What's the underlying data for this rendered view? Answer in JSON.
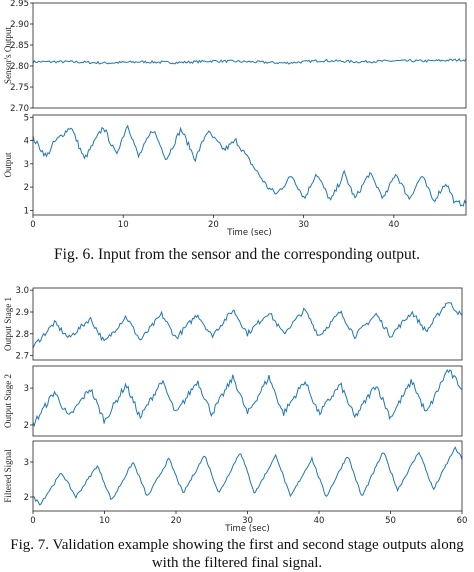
{
  "captions": {
    "fig6": "Fig. 6. Input from the sensor and the corresponding output.",
    "fig7_line1": "Fig. 7. Validation example showing the first and second stage outputs along",
    "fig7_line2": "with the filtered final signal."
  },
  "colors": {
    "line": "#1f77b4",
    "frame": "#222222"
  },
  "chart_data": [
    {
      "type": "line",
      "figure": "Fig. 6",
      "ylabel": "Sensor's Output",
      "xlabel": "",
      "xlim": [
        0,
        48
      ],
      "ylim": [
        2.7,
        2.95
      ],
      "yticks": [
        2.7,
        2.75,
        2.8,
        2.85,
        2.9,
        2.95
      ],
      "ytick_labels": [
        "2.70",
        "2.75",
        "2.80",
        "2.85",
        "2.90",
        "2.95"
      ],
      "xticks": [],
      "x": [
        0,
        4,
        8,
        12,
        16,
        20,
        24,
        28,
        32,
        36,
        40,
        44,
        48
      ],
      "y": [
        2.81,
        2.81,
        2.807,
        2.81,
        2.808,
        2.812,
        2.81,
        2.807,
        2.813,
        2.81,
        2.812,
        2.812,
        2.815
      ],
      "noise": 0.003
    },
    {
      "type": "line",
      "figure": "Fig. 6",
      "ylabel": "Output",
      "xlabel": "Time (sec)",
      "xlim": [
        0,
        48
      ],
      "ylim": [
        0.8,
        5.1
      ],
      "yticks": [
        1,
        2,
        3,
        4,
        5
      ],
      "ytick_labels": [
        "1",
        "2",
        "3",
        "4",
        "5"
      ],
      "xticks": [
        0,
        10,
        20,
        30,
        40
      ],
      "x": [
        0,
        1.5,
        2.3,
        4.2,
        5.7,
        7.8,
        9.2,
        10.5,
        11.7,
        13.3,
        14.8,
        16.4,
        18,
        19.3,
        21.2,
        22.5,
        24.4,
        26,
        27,
        28.7,
        30.1,
        31.4,
        33,
        34.5,
        35.7,
        37.3,
        38.9,
        40.2,
        41.7,
        43.1,
        44.4,
        45.8,
        46.8,
        47.7
      ],
      "y": [
        4.1,
        3.3,
        3.9,
        4.6,
        3.2,
        4.6,
        3.4,
        4.7,
        3.3,
        4.5,
        3.2,
        4.5,
        3.2,
        4.4,
        3.6,
        4.0,
        2.9,
        2.0,
        1.7,
        2.5,
        1.5,
        2.6,
        1.4,
        2.6,
        1.5,
        2.6,
        1.5,
        2.6,
        1.5,
        2.5,
        1.4,
        2.2,
        1.3,
        1.3
      ],
      "noise": 0.12
    },
    {
      "type": "line",
      "figure": "Fig. 7",
      "ylabel": "Output Stage 1",
      "xlabel": "",
      "xlim": [
        0,
        60
      ],
      "ylim": [
        2.68,
        3.01
      ],
      "yticks": [
        2.7,
        2.8,
        2.9,
        3.0
      ],
      "ytick_labels": [
        "2.7",
        "2.8",
        "2.9",
        "3.0"
      ],
      "xticks": [],
      "x": [
        0,
        3,
        5,
        8,
        10,
        13,
        15,
        18,
        20,
        23,
        25,
        28,
        30,
        33,
        35,
        38,
        40,
        43,
        45,
        48,
        50,
        53,
        55,
        58,
        60
      ],
      "y": [
        2.74,
        2.85,
        2.78,
        2.87,
        2.76,
        2.88,
        2.77,
        2.89,
        2.78,
        2.89,
        2.79,
        2.91,
        2.8,
        2.9,
        2.8,
        2.91,
        2.79,
        2.9,
        2.79,
        2.89,
        2.79,
        2.9,
        2.81,
        2.95,
        2.88
      ],
      "noise": 0.012
    },
    {
      "type": "line",
      "figure": "Fig. 7",
      "ylabel": "Output Stage 2",
      "xlabel": "",
      "xlim": [
        0,
        60
      ],
      "ylim": [
        1.7,
        3.6
      ],
      "yticks": [
        2,
        3
      ],
      "ytick_labels": [
        "2",
        "3"
      ],
      "xticks": [],
      "x": [
        0,
        3,
        5,
        8,
        10,
        13,
        15,
        18,
        20,
        23,
        25,
        28,
        30,
        33,
        35,
        38,
        40,
        43,
        45,
        48,
        50,
        53,
        55,
        58,
        60
      ],
      "y": [
        2.0,
        2.9,
        2.2,
        3.0,
        2.1,
        3.1,
        2.2,
        3.2,
        2.3,
        3.2,
        2.3,
        3.3,
        2.3,
        3.3,
        2.3,
        3.2,
        2.3,
        3.1,
        2.2,
        3.1,
        2.2,
        3.2,
        2.3,
        3.5,
        3.0
      ],
      "noise": 0.09
    },
    {
      "type": "line",
      "figure": "Fig. 7",
      "ylabel": "Filtered Signal",
      "xlabel": "Time (sec)",
      "xlim": [
        0,
        60
      ],
      "ylim": [
        1.6,
        3.6
      ],
      "yticks": [
        2,
        3
      ],
      "ytick_labels": [
        "2",
        "3"
      ],
      "xticks": [
        0,
        10,
        20,
        30,
        40,
        50,
        60
      ],
      "x": [
        0,
        1,
        4,
        6,
        9,
        11,
        14,
        16,
        19,
        21,
        24,
        26,
        29,
        31,
        34,
        36,
        39,
        41,
        44,
        46,
        49,
        51,
        54,
        56,
        59,
        60
      ],
      "y": [
        2.0,
        1.8,
        2.7,
        2.0,
        2.9,
        1.9,
        3.0,
        2.0,
        3.1,
        2.1,
        3.2,
        2.1,
        3.3,
        2.1,
        3.2,
        2.0,
        3.1,
        2.0,
        3.2,
        2.0,
        3.3,
        2.2,
        3.3,
        2.2,
        3.4,
        3.1
      ],
      "noise": 0.04
    }
  ]
}
